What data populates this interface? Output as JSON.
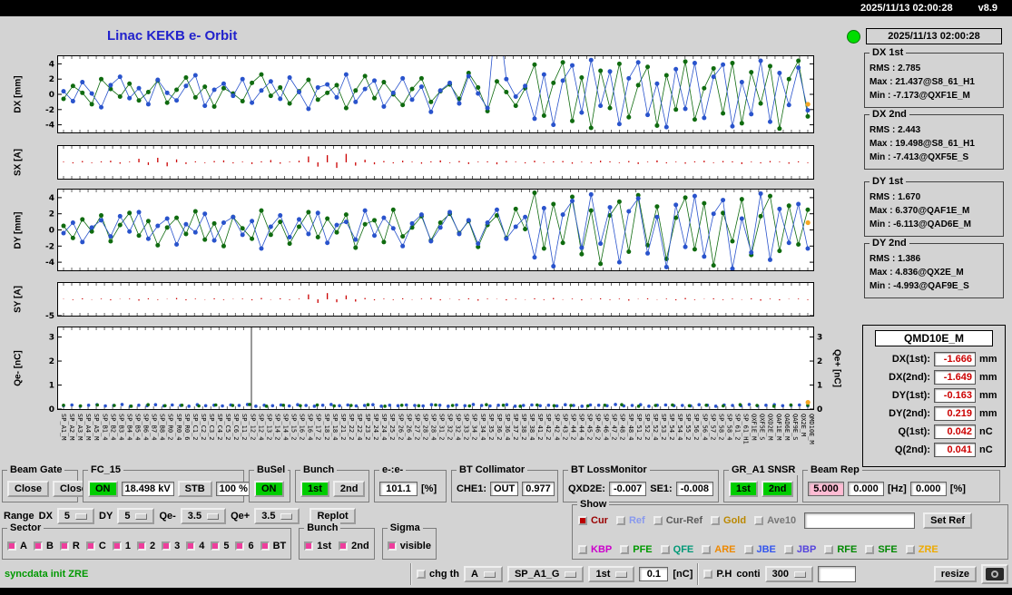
{
  "topbar": {
    "datetime": "2025/11/13 02:00:28",
    "version": "v8.9"
  },
  "header": {
    "title": "Linac KEKB e- Orbit",
    "title_color": "#2222cc"
  },
  "status": {
    "indicator_color": "#00dd00",
    "timestamp": "2025/11/13 02:00:28"
  },
  "stats": [
    {
      "label": "DX 1st",
      "rms": "RMS : 2.785",
      "max": "Max : 21.437@S8_61_H1",
      "min": "Min : -7.173@QXF1E_M"
    },
    {
      "label": "DX 2nd",
      "rms": "RMS : 2.443",
      "max": "Max : 19.498@S8_61_H1",
      "min": "Min : -7.413@QXF5E_S"
    },
    {
      "label": "DY 1st",
      "rms": "RMS : 1.670",
      "max": "Max : 6.370@QAF1E_M",
      "min": "Min : -6.113@QAD6E_M"
    },
    {
      "label": "DY 2nd",
      "rms": "RMS : 1.386",
      "max": "Max : 4.836@QX2E_M",
      "min": "Min : -4.993@QAF9E_S"
    }
  ],
  "qmd": {
    "title": "QMD10E_M",
    "value_color": "#cc0000",
    "rows": [
      {
        "label": "DX(1st):",
        "value": "-1.666",
        "unit": "mm"
      },
      {
        "label": "DX(2nd):",
        "value": "-1.649",
        "unit": "mm"
      },
      {
        "label": "DY(1st):",
        "value": "-0.163",
        "unit": "mm"
      },
      {
        "label": "DY(2nd):",
        "value": "0.219",
        "unit": "mm"
      },
      {
        "label": "Q(1st):",
        "value": "0.042",
        "unit": "nC"
      },
      {
        "label": "Q(2nd):",
        "value": "0.041",
        "unit": "nC"
      }
    ]
  },
  "panels": {
    "beam_gate": {
      "label": "Beam Gate",
      "btn1": "Close",
      "btn2": "Close"
    },
    "fc15": {
      "label": "FC_15",
      "on": "ON",
      "kv": "18.498 kV",
      "stb": "STB",
      "pct": "100 %"
    },
    "busel": {
      "label": "BuSel",
      "on": "ON"
    },
    "bunch": {
      "label": "Bunch",
      "b1": "1st",
      "b2": "2nd"
    },
    "ee": {
      "label": "e-:e-",
      "value": "101.1",
      "unit": "[%]"
    },
    "bt_collimator": {
      "label": "BT Collimator",
      "che1_label": "CHE1:",
      "che1": "OUT",
      "value": "0.977"
    },
    "bt_loss": {
      "label": "BT LossMonitor",
      "qxd2e_label": "QXD2E:",
      "qxd2e": "-0.007",
      "se1_label": "SE1:",
      "se1": "-0.008"
    },
    "gr_snsr": {
      "label": "GR_A1 SNSR",
      "b1": "1st",
      "b2": "2nd"
    },
    "beam_rep": {
      "label": "Beam Rep",
      "v1": "5.000",
      "v2": "0.000",
      "u1": "[Hz]",
      "v3": "0.000",
      "u2": "[%]"
    }
  },
  "range_row": {
    "label": "Range",
    "dx_label": "DX",
    "dx": "5",
    "dy_label": "DY",
    "dy": "5",
    "qem_label": "Qe-",
    "qem": "3.5",
    "qep_label": "Qe+",
    "qep": "3.5",
    "replot": "Replot"
  },
  "sector": {
    "label": "Sector",
    "items": [
      "A",
      "B",
      "R",
      "C",
      "1",
      "2",
      "3",
      "4",
      "5",
      "6",
      "BT"
    ]
  },
  "bunch_sel": {
    "label": "Bunch",
    "items": [
      "1st",
      "2nd"
    ]
  },
  "sigma": {
    "label": "Sigma",
    "item": "visible"
  },
  "show": {
    "label": "Show",
    "row1": [
      {
        "label": "Cur",
        "color": "#990000",
        "checked": true,
        "check_color": "#bb0000"
      },
      {
        "label": "Ref",
        "color": "#8899ee"
      },
      {
        "label": "Cur-Ref",
        "color": "#5a5a5a"
      },
      {
        "label": "Gold",
        "color": "#bb8800"
      },
      {
        "label": "Ave10",
        "color": "#777777"
      }
    ],
    "ref_input": "",
    "set_ref": "Set Ref",
    "row2": [
      {
        "label": "KBP",
        "color": "#cc00cc"
      },
      {
        "label": "PFE",
        "color": "#009900"
      },
      {
        "label": "QFE",
        "color": "#009977"
      },
      {
        "label": "ARE",
        "color": "#ee8800"
      },
      {
        "label": "JBE",
        "color": "#3355ee"
      },
      {
        "label": "JBP",
        "color": "#5544dd"
      },
      {
        "label": "RFE",
        "color": "#008800"
      },
      {
        "label": "SFE",
        "color": "#008800"
      },
      {
        "label": "ZRE",
        "color": "#eeaa00"
      }
    ]
  },
  "bottom": {
    "status_text": "syncdata init ZRE",
    "status_color": "#009900",
    "chg_th": "chg th",
    "menu_a": "A",
    "menu_sp": "SP_A1_G",
    "menu_bunch": "1st",
    "threshold": "0.1",
    "threshold_unit": "[nC]",
    "ph": "P.H",
    "conti": "conti",
    "menu_300": "300",
    "blank_field": "",
    "resize": "resize"
  },
  "plots": [
    {
      "name": "dx",
      "label": "DX [mm]",
      "ylim": [
        -5,
        5
      ],
      "yticks": [
        4,
        2,
        0,
        -2,
        -4
      ],
      "series": [
        {
          "color": "#0f6b0f",
          "line": true,
          "r": 2.5,
          "ys": [
            -0.6,
            1.1,
            0.2,
            -1.3,
            2.0,
            0.7,
            -0.3,
            1.4,
            -0.8,
            0.3,
            1.8,
            -1.1,
            0.6,
            2.2,
            -0.4,
            1.0,
            -1.6,
            0.8,
            0.1,
            -0.9,
            1.5,
            2.6,
            -0.2,
            0.9,
            -1.2,
            0.4,
            1.9,
            -0.7,
            0.2,
            1.2,
            -1.8,
            0.5,
            2.4,
            -0.5,
            1.6,
            0.0,
            -1.4,
            0.7,
            2.1,
            -1.0,
            0.4,
            1.3,
            -0.6,
            2.8,
            0.9,
            -2.2,
            1.7,
            0.3,
            -1.5,
            0.8,
            3.9,
            -2.8,
            1.5,
            4.2,
            -3.5,
            2.2,
            -4.4,
            3.1,
            -1.8,
            4.0,
            -3.0,
            1.2,
            3.6,
            -4.1,
            2.5,
            -2.0,
            4.3,
            -3.3,
            0.8,
            3.4,
            -2.5,
            4.1,
            -3.8,
            2.9,
            -1.2,
            3.7,
            -4.5,
            2.0,
            4.4,
            -2.9
          ]
        },
        {
          "color": "#2953cc",
          "line": true,
          "r": 2.5,
          "ys": [
            0.4,
            -0.9,
            1.6,
            0.1,
            -1.7,
            1.2,
            2.3,
            -0.5,
            0.8,
            -1.3,
            1.9,
            0.2,
            -0.8,
            1.1,
            2.5,
            -1.5,
            0.6,
            1.4,
            -0.2,
            2.0,
            -1.1,
            0.5,
            1.7,
            -0.6,
            2.2,
            0.3,
            -1.9,
            0.9,
            1.3,
            -0.4,
            2.6,
            -1.0,
            0.7,
            1.8,
            -1.6,
            0.2,
            2.1,
            -0.7,
            1.0,
            -2.3,
            0.5,
            1.5,
            -1.2,
            2.4,
            0.1,
            -1.8,
            12.0,
            2.0,
            -0.3,
            1.1,
            -3.2,
            2.6,
            -4.0,
            1.8,
            3.8,
            -2.4,
            4.5,
            -1.5,
            3.0,
            -3.9,
            2.1,
            4.2,
            -2.7,
            1.4,
            -4.3,
            3.3,
            -1.9,
            4.1,
            -3.1,
            2.3,
            3.9,
            -4.2,
            1.6,
            -2.6,
            4.4,
            -3.6,
            2.8,
            -1.4,
            3.5,
            -2.1
          ]
        }
      ],
      "extra_points": [
        {
          "x": 0.993,
          "y": -1.3,
          "color": "#f5a623"
        }
      ]
    },
    {
      "name": "sx",
      "label": "SX [A]",
      "ylim": [
        -5,
        5
      ],
      "yticks": [],
      "series": [
        {
          "type": "bars",
          "color": "#cc0000",
          "ys": [
            0.2,
            -0.3,
            0.4,
            -0.2,
            0.3,
            0.5,
            -0.4,
            0.2,
            1.1,
            -0.8,
            1.4,
            -1.2,
            0.9,
            -0.5,
            0.3,
            -0.2,
            0.4,
            0.6,
            -0.3,
            0.2,
            -0.5,
            0.3,
            0.7,
            -0.4,
            0.2,
            0.5,
            1.8,
            -1.3,
            2.2,
            -1.7,
            2.6,
            -1.0,
            0.8,
            -0.6,
            0.4,
            -0.3,
            0.5,
            0.2,
            -0.4,
            0.3,
            0.6,
            -0.2,
            0.4,
            -0.5,
            0.2,
            0.3,
            -0.6,
            0.4,
            0.2,
            -0.3,
            0.5,
            -0.2,
            0.3,
            0.4,
            -0.4,
            0.2,
            -0.3,
            0.5,
            0.3,
            -0.2,
            0.4,
            -0.5,
            0.2,
            0.6,
            -0.3,
            0.2,
            -0.4,
            0.3,
            0.5,
            -0.2,
            0.4,
            0.3,
            -0.5,
            0.2,
            -0.3,
            0.4,
            0.2,
            -0.4,
            0.3,
            -0.2
          ]
        }
      ]
    },
    {
      "name": "dy",
      "label": "DY [mm]",
      "ylim": [
        -5,
        5
      ],
      "yticks": [
        4,
        2,
        0,
        -2,
        -4
      ],
      "series": [
        {
          "color": "#0f6b0f",
          "line": true,
          "r": 2.5,
          "ys": [
            0.5,
            -1.0,
            1.3,
            -0.2,
            1.8,
            -1.4,
            0.6,
            2.1,
            -0.7,
            1.1,
            -1.9,
            0.3,
            1.5,
            -0.5,
            2.3,
            -1.2,
            0.8,
            -2.0,
            1.6,
            0.2,
            -1.1,
            2.4,
            -0.6,
            1.0,
            -1.7,
            0.4,
            2.2,
            -0.9,
            1.4,
            -0.3,
            1.9,
            -2.2,
            0.7,
            1.2,
            -1.5,
            2.5,
            -0.8,
            0.3,
            1.7,
            -1.3,
            0.9,
            2.0,
            -0.4,
            1.1,
            -2.1,
            0.6,
            1.8,
            -1.0,
            2.6,
            0.1,
            4.6,
            -2.3,
            3.2,
            -1.6,
            4.1,
            -3.0,
            2.4,
            -4.2,
            1.8,
            3.5,
            -2.7,
            4.3,
            -1.9,
            2.9,
            -3.6,
            1.5,
            4.0,
            -2.4,
            3.3,
            -4.4,
            2.1,
            -1.4,
            3.8,
            -3.1,
            1.7,
            4.2,
            -2.6,
            3.0,
            -1.8,
            2.5
          ]
        },
        {
          "color": "#2953cc",
          "line": true,
          "r": 2.5,
          "ys": [
            -0.4,
            0.9,
            -1.5,
            0.3,
            1.2,
            -0.8,
            1.7,
            -0.2,
            2.2,
            -1.1,
            0.5,
            1.4,
            -1.8,
            0.7,
            -0.3,
            2.0,
            -1.3,
            0.9,
            1.6,
            -0.6,
            1.1,
            -2.3,
            0.4,
            1.8,
            -0.9,
            1.3,
            -0.5,
            2.1,
            -1.6,
            0.6,
            1.0,
            -1.2,
            2.4,
            -0.7,
            1.5,
            0.2,
            -2.0,
            0.8,
            1.9,
            -1.4,
            0.3,
            2.2,
            -0.5,
            1.2,
            -1.7,
            0.9,
            2.5,
            -1.1,
            0.4,
            1.6,
            -3.4,
            2.7,
            -4.5,
            1.9,
            3.6,
            -2.2,
            4.4,
            -1.7,
            2.8,
            -4.0,
            2.3,
            3.9,
            -2.9,
            1.6,
            -4.6,
            3.1,
            -2.1,
            4.2,
            -3.3,
            2.0,
            3.7,
            -4.8,
            1.4,
            -2.8,
            4.5,
            -3.7,
            2.6,
            -1.6,
            3.2,
            -2.3
          ]
        }
      ],
      "extra_points": [
        {
          "x": 0.993,
          "y": 0.9,
          "color": "#f5a623"
        }
      ]
    },
    {
      "name": "sy",
      "label": "SY [A]",
      "ylim": [
        -5,
        5
      ],
      "yticks": [
        -5
      ],
      "series": [
        {
          "type": "bars",
          "color": "#cc0000",
          "ys": [
            0.1,
            -0.2,
            0.3,
            -0.1,
            0.2,
            -0.3,
            0.1,
            0.2,
            -0.4,
            0.3,
            -0.2,
            0.1,
            0.4,
            -0.3,
            0.2,
            -0.1,
            0.3,
            -0.2,
            0.1,
            0.2,
            -0.3,
            0.4,
            -0.1,
            0.3,
            -0.2,
            0.2,
            1.5,
            -1.1,
            1.9,
            -0.9,
            1.2,
            -0.7,
            0.4,
            -0.3,
            0.2,
            -0.2,
            0.3,
            -0.1,
            0.2,
            0.4,
            -0.3,
            0.1,
            -0.2,
            0.3,
            -0.4,
            0.2,
            0.1,
            -0.3,
            0.2,
            -0.1,
            0.3,
            -0.2,
            0.4,
            -0.1,
            0.2,
            -0.3,
            0.1,
            0.3,
            -0.2,
            0.2,
            -0.4,
            0.1,
            0.3,
            -0.1,
            0.2,
            -0.3,
            0.4,
            -0.2,
            0.1,
            0.3,
            -0.2,
            0.2,
            -0.1,
            0.3,
            -0.4,
            0.2,
            -0.3,
            0.1,
            0.2,
            -0.2
          ]
        }
      ]
    },
    {
      "name": "q",
      "label": "Qe- [nC]",
      "right_label": "Qe+ [nC]",
      "ylim": [
        0,
        3.4
      ],
      "yticks": [
        0,
        1,
        2,
        3
      ],
      "yticks_right": [
        0,
        1,
        2,
        3
      ],
      "vlines": [
        {
          "x": 0.256,
          "color": "#333333"
        }
      ],
      "series": [
        {
          "color": "#2953cc",
          "r": 1.8,
          "ys": [
            0.14,
            0.17,
            0.12,
            0.16,
            0.18,
            0.13,
            0.15,
            0.19,
            0.12,
            0.16,
            0.14,
            0.18,
            0.13,
            0.17,
            0.15,
            0.12,
            0.18,
            0.14,
            0.16,
            0.13,
            0.17,
            0.15,
            0.19,
            0.12,
            0.16,
            0.14,
            0.17,
            0.13,
            0.18,
            0.15,
            0.12,
            0.16,
            0.19,
            0.14,
            0.17,
            0.13,
            0.15,
            0.18,
            0.12,
            0.16,
            0.14,
            0.17,
            0.15,
            0.13,
            0.18,
            0.16,
            0.12,
            0.17,
            0.14,
            0.19,
            0.15,
            0.13,
            0.16,
            0.18,
            0.12,
            0.15,
            0.17,
            0.14,
            0.16,
            0.13,
            0.18,
            0.15,
            0.12,
            0.17,
            0.16,
            0.14,
            0.19,
            0.13,
            0.15,
            0.18,
            0.12,
            0.16,
            0.17,
            0.14,
            0.15,
            0.13,
            0.18,
            0.16,
            0.12,
            0.17,
            0.15,
            0.14,
            0.19,
            0.13,
            0.16,
            0.18,
            0.14,
            0.15,
            0.17,
            0.13
          ]
        },
        {
          "color": "#0f6b0f",
          "r": 1.8,
          "ys": [
            0.16,
            0.13,
            0.17,
            0.15,
            0.12,
            0.18,
            0.14,
            0.16,
            0.13,
            0.17,
            0.15,
            0.19,
            0.12,
            0.16,
            0.14,
            0.17,
            0.13,
            0.15,
            0.18,
            0.12,
            0.16,
            0.14,
            0.17,
            0.15,
            0.13,
            0.18,
            0.16,
            0.12,
            0.17,
            0.14,
            0.15,
            0.13,
            0.16,
            0.18,
            0.12,
            0.15,
            0.17,
            0.14,
            0.16,
            0.13,
            0.18,
            0.15,
            0.12,
            0.17,
            0.16
          ]
        }
      ],
      "extra_points": [
        {
          "x": 0.993,
          "y": 0.28,
          "color": "#f5a623"
        }
      ]
    }
  ],
  "x_labels": [
    "SP_A1_M",
    "SP_A2_M",
    "SP_A3_M",
    "SP_A4_M",
    "SP_A5_M",
    "SP_B1_4",
    "SP_B2_4",
    "SP_B3_4",
    "SP_B4_4",
    "SP_B5_4",
    "SP_B6_4",
    "SP_B7_4",
    "SP_B8_4",
    "SP_R0_2",
    "SP_R0_4",
    "SP_R0_6",
    "SP_C1_2",
    "SP_C2_2",
    "SP_C3_2",
    "SP_C4_2",
    "SP_C5_2",
    "SP_C6_2",
    "SP_11_2",
    "SP_12_2",
    "SP_12_4",
    "SP_13_2",
    "SP_14_2",
    "SP_14_4",
    "SP_15_2",
    "SP_16_2",
    "SP_16_4",
    "SP_17_2",
    "SP_18_2",
    "SP_18_4",
    "SP_21_2",
    "SP_22_2",
    "SP_22_4",
    "SP_23_2",
    "SP_24_2",
    "SP_24_4",
    "SP_25_2",
    "SP_26_2",
    "SP_26_4",
    "SP_27_2",
    "SP_28_2",
    "SP_28_4",
    "SP_31_2",
    "SP_32_2",
    "SP_32_4",
    "SP_33_2",
    "SP_34_2",
    "SP_34_4",
    "SP_35_2",
    "SP_36_2",
    "SP_36_4",
    "SP_37_2",
    "SP_38_2",
    "SP_38_4",
    "SP_41_2",
    "SP_42_2",
    "SP_42_4",
    "SP_43_2",
    "SP_44_2",
    "SP_44_4",
    "SP_45_2",
    "SP_46_2",
    "SP_46_4",
    "SP_47_2",
    "SP_48_2",
    "SP_48_4",
    "SP_51_2",
    "SP_52_2",
    "SP_52_4",
    "SP_53_2",
    "SP_54_2",
    "SP_54_4",
    "SP_55_2",
    "SP_56_2",
    "SP_56_4",
    "SP_57_2",
    "SP_58_2",
    "SP_58_4",
    "SP_61_2",
    "SP_61_H1",
    "QXF1E_M",
    "QXF5E_S",
    "QXD2E_M",
    "QAF1E_M",
    "QAD6E_M",
    "QAF9E_S",
    "QX2E_M",
    "QMD10E_M"
  ]
}
